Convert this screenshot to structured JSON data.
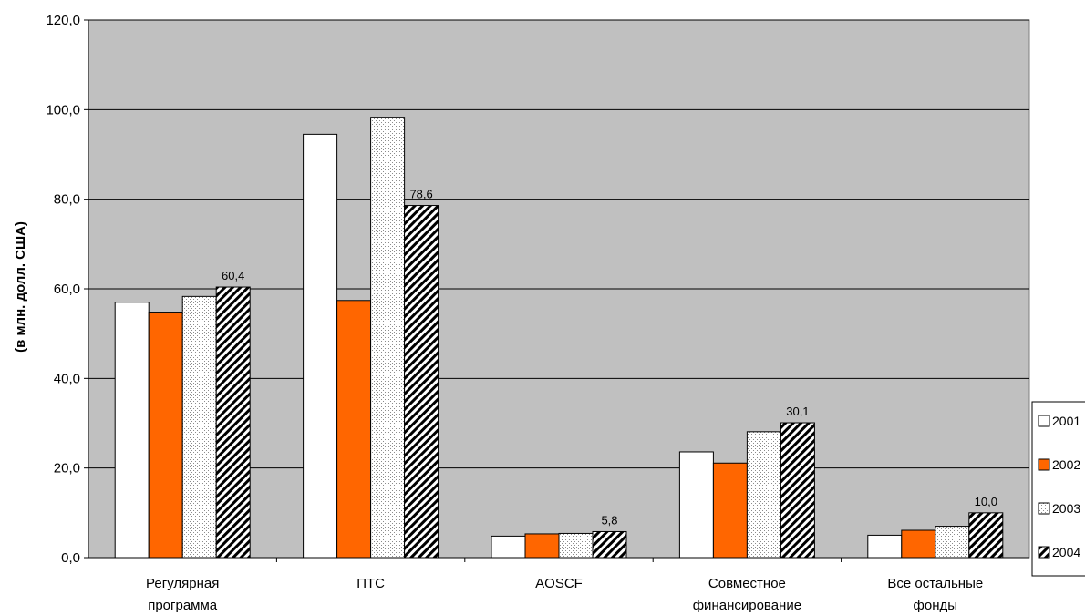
{
  "chart_data": {
    "type": "bar",
    "ylabel": "(в млн. долл. США)",
    "ylim": [
      0,
      120
    ],
    "yticks": [
      "0,0",
      "20,0",
      "40,0",
      "60,0",
      "80,0",
      "100,0",
      "120,0"
    ],
    "grid": true,
    "legend_position": "right",
    "categories": [
      [
        "Регулярная",
        "программа"
      ],
      [
        "ПТС"
      ],
      [
        "AOSCF"
      ],
      [
        "Совместное",
        "финансирование"
      ],
      [
        "Все остальные",
        "фонды"
      ]
    ],
    "series": [
      {
        "name": "2001",
        "values": [
          57.0,
          94.5,
          4.8,
          23.6,
          5.0
        ],
        "color": "#ffffff",
        "pattern": "solid"
      },
      {
        "name": "2002",
        "values": [
          54.8,
          57.4,
          5.3,
          21.1,
          6.1
        ],
        "color": "#ff6600",
        "pattern": "solid"
      },
      {
        "name": "2003",
        "values": [
          58.3,
          98.3,
          5.4,
          28.1,
          7.0
        ],
        "color": "#ffffff",
        "pattern": "dots"
      },
      {
        "name": "2004",
        "values": [
          60.4,
          78.6,
          5.8,
          30.1,
          10.0
        ],
        "color": "#ffffff",
        "pattern": "hatch"
      }
    ],
    "data_labels": [
      "60,4",
      "78,6",
      "5,8",
      "30,1",
      "10,0"
    ],
    "plot_background": "#c0c0c0"
  }
}
